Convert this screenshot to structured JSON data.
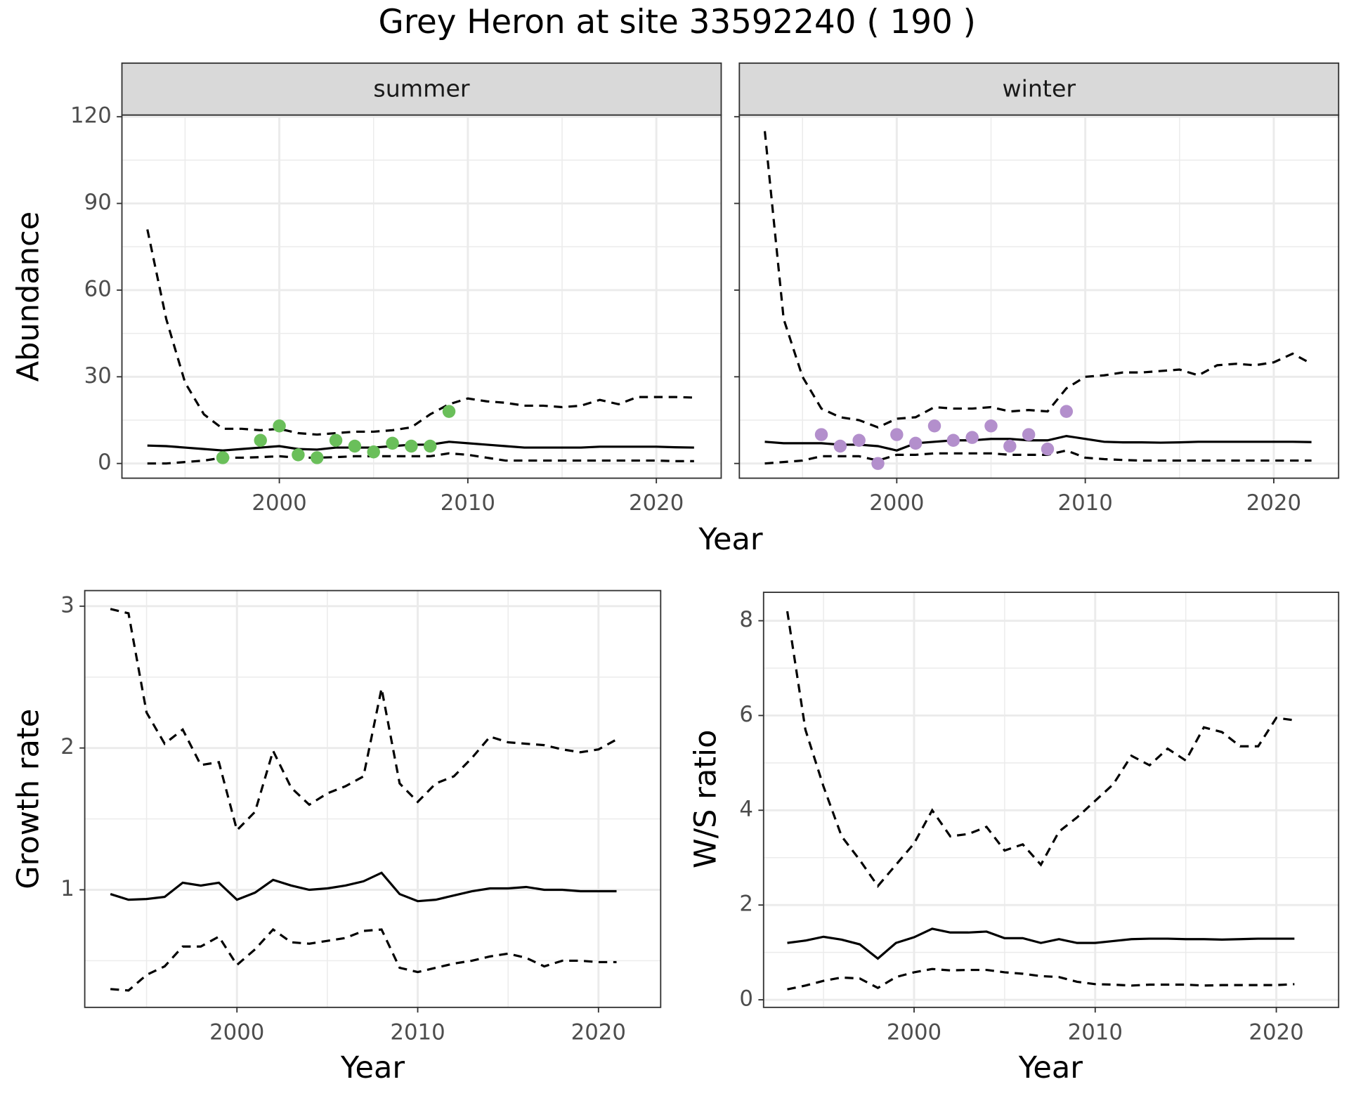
{
  "title": "Grey Heron at site 33592240 ( 190 )",
  "chart_data": [
    {
      "type": "line",
      "facet": "summer",
      "ylabel": "Abundance",
      "xlabel": "Year",
      "x": [
        1993,
        1994,
        1995,
        1996,
        1997,
        1998,
        1999,
        2000,
        2001,
        2002,
        2003,
        2004,
        2005,
        2006,
        2007,
        2008,
        2009,
        2010,
        2011,
        2012,
        2013,
        2014,
        2015,
        2016,
        2017,
        2018,
        2019,
        2020,
        2021,
        2022
      ],
      "xlim": [
        1991.65,
        2023.44
      ],
      "xticks": [
        2000,
        2010,
        2020
      ],
      "minor_xticks": [
        1995,
        2005,
        2015
      ],
      "ylim": [
        -5.09,
        120.6
      ],
      "yticks": [
        0,
        30,
        60,
        90,
        120
      ],
      "minor_yticks": [
        15,
        45,
        75,
        105
      ],
      "show_ytick_labels": true,
      "grid": true,
      "series": [
        {
          "linestyle": "dashed",
          "color": "#000000",
          "values": [
            81,
            50,
            28,
            17,
            12,
            12,
            11.5,
            12,
            10.5,
            10,
            10.5,
            11,
            11,
            11.5,
            12.5,
            17,
            20.5,
            22.5,
            21.5,
            21,
            20,
            20,
            19.5,
            20,
            22,
            20.5,
            23,
            23,
            23,
            22.8
          ]
        },
        {
          "linestyle": "solid",
          "color": "#000000",
          "values": [
            6.2,
            6,
            5.5,
            5,
            4.5,
            5,
            5.5,
            6,
            5,
            4.8,
            5.5,
            5.5,
            5.5,
            6,
            6.5,
            6.5,
            7.5,
            7,
            6.5,
            6,
            5.5,
            5.5,
            5.5,
            5.5,
            5.8,
            5.8,
            5.8,
            5.8,
            5.6,
            5.5
          ]
        },
        {
          "linestyle": "dashed",
          "color": "#000000",
          "values": [
            0,
            0,
            0.5,
            1,
            2,
            2,
            2.2,
            2.5,
            2,
            2,
            2.2,
            2.5,
            2.5,
            2.5,
            2.5,
            2.5,
            3.5,
            3,
            2,
            1,
            1,
            1,
            1,
            1,
            1,
            1,
            1,
            1,
            0.8,
            0.8
          ]
        },
        {
          "linestyle": "none",
          "marker": "point",
          "color": "#6abf5a",
          "values": [
            null,
            null,
            null,
            null,
            2,
            null,
            8,
            13,
            3,
            2,
            8,
            6,
            4,
            7,
            6,
            6,
            18,
            null,
            null,
            null,
            null,
            null,
            null,
            null,
            null,
            null,
            null,
            null,
            null,
            null
          ]
        }
      ]
    },
    {
      "type": "line",
      "facet": "winter",
      "x": [
        1993,
        1994,
        1995,
        1996,
        1997,
        1998,
        1999,
        2000,
        2001,
        2002,
        2003,
        2004,
        2005,
        2006,
        2007,
        2008,
        2009,
        2010,
        2011,
        2012,
        2013,
        2014,
        2015,
        2016,
        2017,
        2018,
        2019,
        2020,
        2021,
        2022
      ],
      "xlim": [
        1991.65,
        2023.44
      ],
      "xticks": [
        2000,
        2010,
        2020
      ],
      "minor_xticks": [
        1995,
        2005,
        2015
      ],
      "ylim": [
        -5.09,
        120.6
      ],
      "yticks": [
        0,
        30,
        60,
        90,
        120
      ],
      "minor_yticks": [
        15,
        45,
        75,
        105
      ],
      "show_ytick_labels": false,
      "grid": true,
      "series": [
        {
          "linestyle": "dashed",
          "color": "#000000",
          "values": [
            115,
            50,
            30,
            19,
            16,
            15,
            12.5,
            15.5,
            16,
            19.5,
            19,
            19,
            19.5,
            18,
            18.5,
            18,
            26,
            30,
            30.5,
            31.5,
            31.5,
            32,
            32.5,
            30.5,
            34,
            34.5,
            34,
            35,
            38,
            34.5
          ]
        },
        {
          "linestyle": "solid",
          "color": "#000000",
          "values": [
            7.5,
            7,
            7,
            7,
            6.5,
            6.5,
            6,
            4.5,
            7,
            7.5,
            8,
            8,
            8.5,
            8.5,
            8,
            8,
            9.5,
            8.5,
            7.5,
            7.3,
            7.3,
            7.2,
            7.3,
            7.5,
            7.5,
            7.5,
            7.5,
            7.5,
            7.5,
            7.4
          ]
        },
        {
          "linestyle": "dashed",
          "color": "#000000",
          "values": [
            0,
            0.5,
            1,
            2.5,
            2.5,
            2.5,
            1,
            3,
            3,
            3.5,
            3.5,
            3.5,
            3.5,
            3,
            3,
            3,
            4.5,
            2,
            1.5,
            1.2,
            1,
            1,
            1,
            1,
            1,
            1,
            1,
            1,
            1,
            1
          ]
        },
        {
          "linestyle": "none",
          "marker": "point",
          "color": "#b38fcc",
          "values": [
            null,
            null,
            null,
            10,
            6,
            8,
            0,
            10,
            7,
            13,
            8,
            9,
            13,
            6,
            10,
            5,
            18,
            null,
            null,
            null,
            null,
            null,
            null,
            null,
            null,
            null,
            null,
            null,
            null,
            null
          ]
        }
      ]
    },
    {
      "type": "line",
      "ylabel": "Growth rate",
      "xlabel": "Year",
      "x": [
        1993,
        1994,
        1995,
        1996,
        1997,
        1998,
        1999,
        2000,
        2001,
        2002,
        2003,
        2004,
        2005,
        2006,
        2007,
        2008,
        2009,
        2010,
        2011,
        2012,
        2013,
        2014,
        2015,
        2016,
        2017,
        2018,
        2019,
        2020,
        2021
      ],
      "xlim": [
        1991.58,
        2023.44
      ],
      "xticks": [
        2000,
        2010,
        2020
      ],
      "minor_xticks": [
        1995,
        2005,
        2015
      ],
      "ylim": [
        0.171,
        3.11
      ],
      "yticks": [
        1,
        2,
        3
      ],
      "minor_yticks": [
        0.5,
        1.5,
        2.5
      ],
      "show_ytick_labels": true,
      "grid": true,
      "series": [
        {
          "linestyle": "dashed",
          "color": "#000000",
          "values": [
            2.98,
            2.95,
            2.25,
            2.03,
            2.13,
            1.88,
            1.9,
            1.42,
            1.55,
            1.98,
            1.72,
            1.6,
            1.68,
            1.73,
            1.8,
            2.42,
            1.75,
            1.62,
            1.75,
            1.8,
            1.93,
            2.08,
            2.04,
            2.03,
            2.02,
            1.99,
            1.97,
            1.99,
            2.06
          ]
        },
        {
          "linestyle": "solid",
          "color": "#000000",
          "values": [
            0.97,
            0.93,
            0.935,
            0.95,
            1.05,
            1.03,
            1.05,
            0.93,
            0.98,
            1.07,
            1.03,
            1.0,
            1.01,
            1.03,
            1.06,
            1.12,
            0.97,
            0.92,
            0.93,
            0.96,
            0.99,
            1.01,
            1.01,
            1.02,
            1.0,
            1.0,
            0.99,
            0.99,
            0.99
          ]
        },
        {
          "linestyle": "dashed",
          "color": "#000000",
          "values": [
            0.3,
            0.29,
            0.4,
            0.46,
            0.6,
            0.6,
            0.67,
            0.47,
            0.58,
            0.72,
            0.63,
            0.62,
            0.64,
            0.66,
            0.71,
            0.72,
            0.45,
            0.42,
            0.45,
            0.48,
            0.5,
            0.53,
            0.55,
            0.52,
            0.46,
            0.5,
            0.5,
            0.49,
            0.49
          ]
        }
      ]
    },
    {
      "type": "line",
      "ylabel": "W/S ratio",
      "xlabel": "Year",
      "x": [
        1993,
        1994,
        1995,
        1996,
        1997,
        1998,
        1999,
        2000,
        2001,
        2002,
        2003,
        2004,
        2005,
        2006,
        2007,
        2008,
        2009,
        2010,
        2011,
        2012,
        2013,
        2014,
        2015,
        2016,
        2017,
        2018,
        2019,
        2020,
        2021
      ],
      "xlim": [
        1991.69,
        2023.44
      ],
      "xticks": [
        2000,
        2010,
        2020
      ],
      "minor_xticks": [
        1995,
        2005,
        2015
      ],
      "ylim": [
        -0.16,
        8.6
      ],
      "yticks": [
        0,
        2,
        4,
        6,
        8
      ],
      "minor_yticks": [
        1,
        3,
        5,
        7
      ],
      "show_ytick_labels": true,
      "grid": true,
      "series": [
        {
          "linestyle": "dashed",
          "color": "#000000",
          "values": [
            8.2,
            5.7,
            4.5,
            3.45,
            2.95,
            2.4,
            2.85,
            3.3,
            4.0,
            3.45,
            3.5,
            3.65,
            3.15,
            3.28,
            2.85,
            3.55,
            3.85,
            4.2,
            4.55,
            5.15,
            4.95,
            5.3,
            5.05,
            5.75,
            5.65,
            5.35,
            5.35,
            5.95,
            5.9
          ]
        },
        {
          "linestyle": "solid",
          "color": "#000000",
          "values": [
            1.2,
            1.25,
            1.33,
            1.27,
            1.17,
            0.87,
            1.2,
            1.32,
            1.5,
            1.42,
            1.42,
            1.44,
            1.3,
            1.3,
            1.2,
            1.28,
            1.2,
            1.2,
            1.24,
            1.28,
            1.29,
            1.29,
            1.28,
            1.28,
            1.27,
            1.28,
            1.29,
            1.29,
            1.29
          ]
        },
        {
          "linestyle": "dashed",
          "color": "#000000",
          "values": [
            0.22,
            0.3,
            0.4,
            0.47,
            0.45,
            0.25,
            0.48,
            0.58,
            0.65,
            0.62,
            0.63,
            0.63,
            0.58,
            0.55,
            0.5,
            0.48,
            0.38,
            0.33,
            0.32,
            0.3,
            0.32,
            0.32,
            0.32,
            0.3,
            0.31,
            0.31,
            0.31,
            0.31,
            0.33
          ]
        }
      ]
    }
  ]
}
